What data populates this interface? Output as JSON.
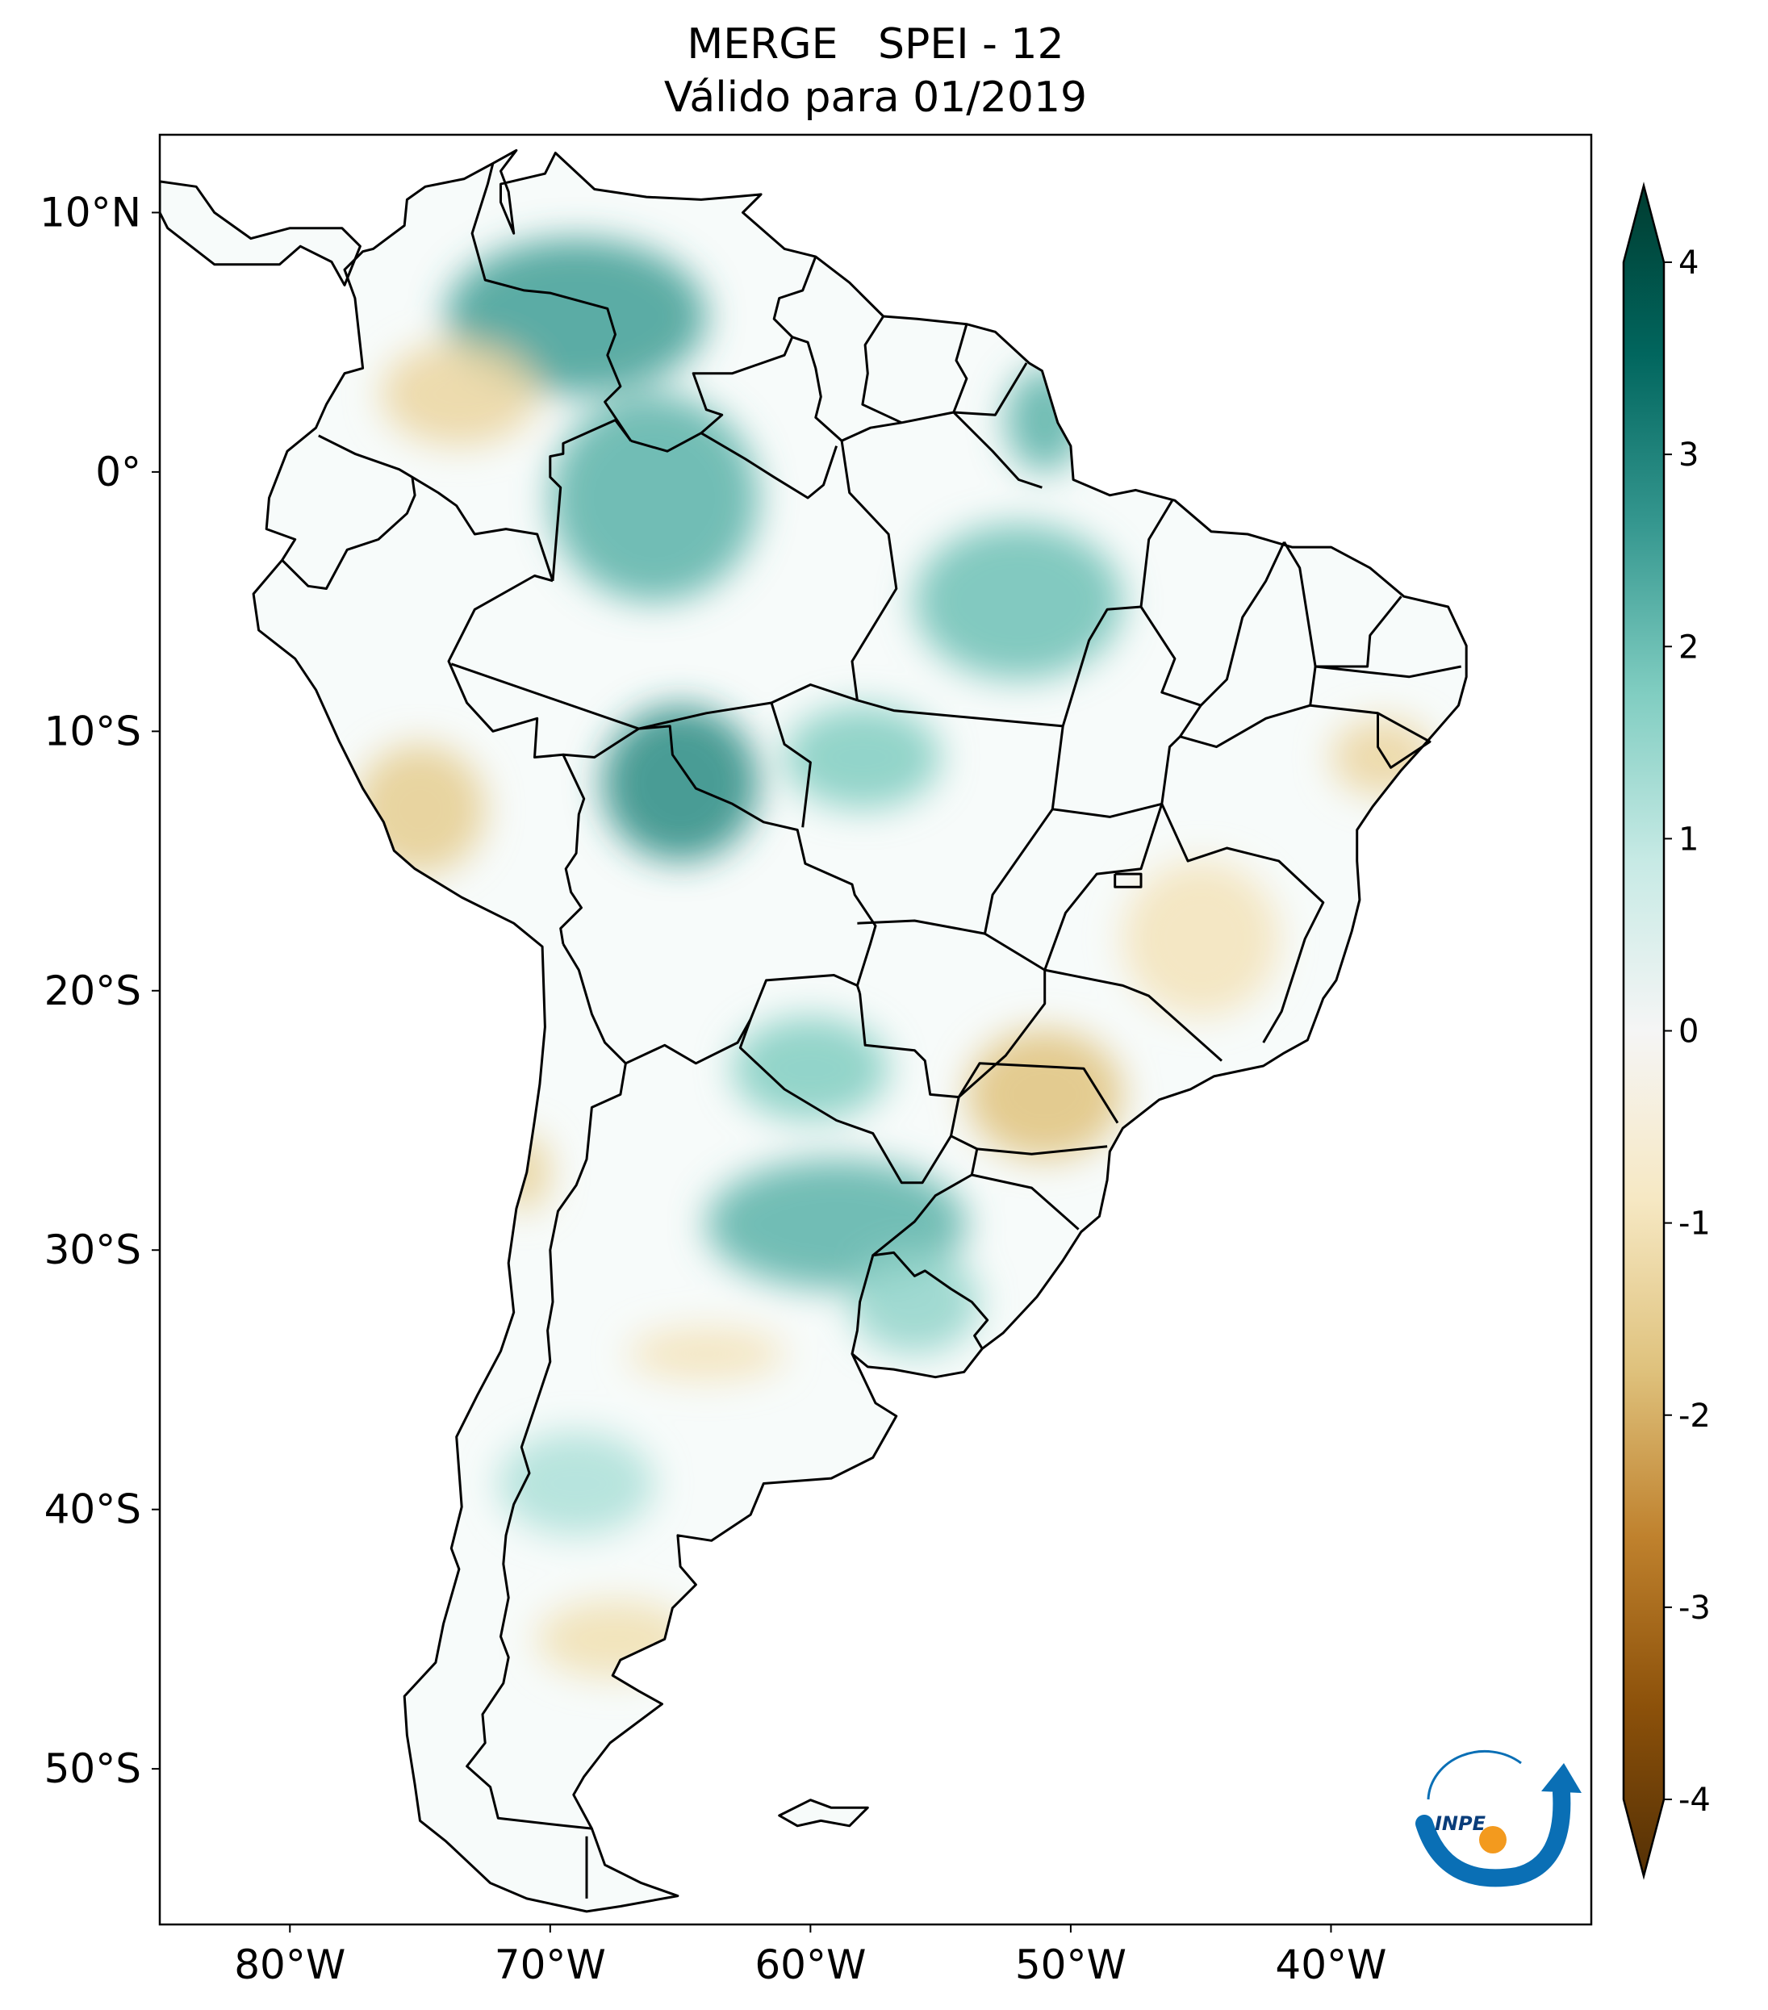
{
  "title": {
    "line1": "MERGE   SPEI - 12",
    "line2": "Válido para 01/2019"
  },
  "map": {
    "lon_range": [
      -85,
      -30
    ],
    "lat_range": [
      -56,
      13
    ],
    "lon_ticks": [
      {
        "value": -80,
        "label": "80°W"
      },
      {
        "value": -70,
        "label": "70°W"
      },
      {
        "value": -60,
        "label": "60°W"
      },
      {
        "value": -50,
        "label": "50°W"
      },
      {
        "value": -40,
        "label": "40°W"
      }
    ],
    "lat_ticks": [
      {
        "value": 10,
        "label": "10°N"
      },
      {
        "value": 0,
        "label": "0°"
      },
      {
        "value": -10,
        "label": "10°S"
      },
      {
        "value": -20,
        "label": "20°S"
      },
      {
        "value": -30,
        "label": "30°S"
      },
      {
        "value": -40,
        "label": "40°S"
      },
      {
        "value": -50,
        "label": "50°S"
      }
    ],
    "anomaly_regions": [
      {
        "name": "northern-colombia-venezuela-wet",
        "lon": -69,
        "lat": 6,
        "rx": 5,
        "ry": 3,
        "spei": 2.3
      },
      {
        "name": "amazonas-west-wet",
        "lon": -66,
        "lat": -1,
        "rx": 4,
        "ry": 4,
        "spei": 2.0
      },
      {
        "name": "para-central-wet",
        "lon": -52,
        "lat": -5,
        "rx": 4,
        "ry": 3,
        "spei": 1.8
      },
      {
        "name": "amapa-wet",
        "lon": -51,
        "lat": 2,
        "rx": 1.5,
        "ry": 2,
        "spei": 2.0
      },
      {
        "name": "bolivia-north-wet",
        "lon": -65,
        "lat": -12,
        "rx": 3,
        "ry": 3,
        "spei": 2.6
      },
      {
        "name": "mato-grosso-wet",
        "lon": -58,
        "lat": -11,
        "rx": 3,
        "ry": 2,
        "spei": 1.6
      },
      {
        "name": "paraguay-chaco-wet",
        "lon": -60,
        "lat": -23,
        "rx": 3,
        "ry": 2,
        "spei": 1.6
      },
      {
        "name": "argentina-northeast-wet",
        "lon": -59,
        "lat": -29,
        "rx": 5,
        "ry": 2.5,
        "spei": 2.0
      },
      {
        "name": "uruguay-wet",
        "lon": -56,
        "lat": -32,
        "rx": 2.5,
        "ry": 2,
        "spei": 1.4
      },
      {
        "name": "patagonia-north-wet",
        "lon": -69,
        "lat": -39,
        "rx": 3,
        "ry": 2,
        "spei": 1.1
      },
      {
        "name": "peru-central-dry",
        "lon": -75,
        "lat": -13,
        "rx": 2.5,
        "ry": 2.5,
        "spei": -1.4
      },
      {
        "name": "colombia-south-dry",
        "lon": -73.5,
        "lat": 3,
        "rx": 3,
        "ry": 2,
        "spei": -1.2
      },
      {
        "name": "parana-sao-paulo-dry",
        "lon": -51,
        "lat": -24,
        "rx": 3,
        "ry": 2.5,
        "spei": -1.6
      },
      {
        "name": "minas-gerais-dry",
        "lon": -45,
        "lat": -18,
        "rx": 3,
        "ry": 3,
        "spei": -0.9
      },
      {
        "name": "bahia-east-dry",
        "lon": -38,
        "lat": -11,
        "rx": 2,
        "ry": 1.5,
        "spei": -1.2
      },
      {
        "name": "chile-central-dry",
        "lon": -71,
        "lat": -27,
        "rx": 1,
        "ry": 1.5,
        "spei": -1.3
      },
      {
        "name": "patagonia-south-dry",
        "lon": -67.5,
        "lat": -45,
        "rx": 3,
        "ry": 1.5,
        "spei": -1.0
      },
      {
        "name": "la-pampa-dry",
        "lon": -64,
        "lat": -34,
        "rx": 3,
        "ry": 1,
        "spei": -0.9
      }
    ],
    "ocean_color": "#ffffff",
    "land_base_color": "#f7fbfa",
    "border_color": "#000000"
  },
  "colorbar": {
    "min": -4,
    "max": 4,
    "ticks": [
      {
        "value": 4,
        "label": "4"
      },
      {
        "value": 3,
        "label": "3"
      },
      {
        "value": 2,
        "label": "2"
      },
      {
        "value": 1,
        "label": "1"
      },
      {
        "value": 0,
        "label": "0"
      },
      {
        "value": -1,
        "label": "-1"
      },
      {
        "value": -2,
        "label": "-2"
      },
      {
        "value": -3,
        "label": "-3"
      },
      {
        "value": -4,
        "label": "-4"
      }
    ],
    "colormap": [
      "#543005",
      "#8c510a",
      "#bf812d",
      "#dfc27d",
      "#f6e8c3",
      "#f5f5f5",
      "#c7eae5",
      "#80cdc1",
      "#35978f",
      "#01665e",
      "#003c30"
    ]
  },
  "logo": {
    "text": "INPE",
    "arc_color": "#0a6fb5",
    "dot_color": "#f39a1e"
  }
}
